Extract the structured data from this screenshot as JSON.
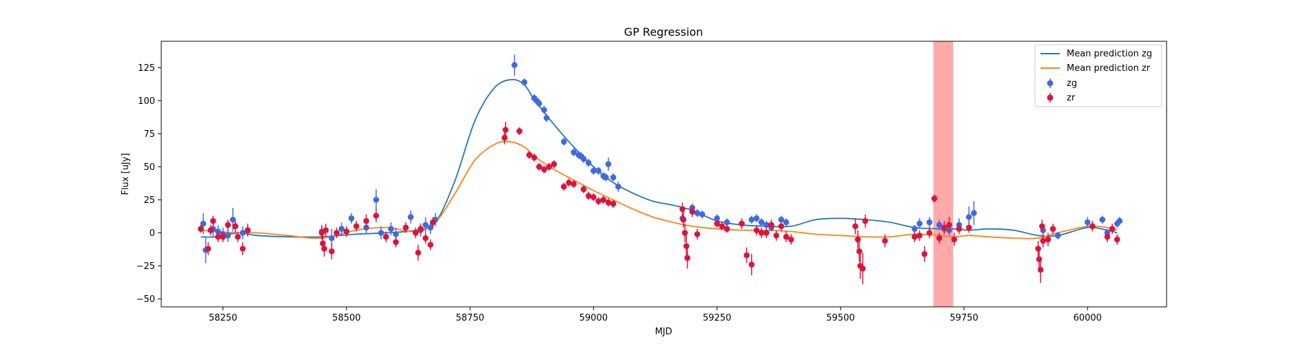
{
  "chart_data": {
    "type": "scatter",
    "title": "GP Regression",
    "xlabel": "MJD",
    "ylabel": "Flux [uJy]",
    "xlim": [
      58125,
      60160
    ],
    "ylim": [
      -56,
      145
    ],
    "xticks": [
      58250,
      58500,
      58750,
      59000,
      59250,
      59500,
      59750,
      60000
    ],
    "yticks": [
      -50,
      -25,
      0,
      25,
      50,
      75,
      100,
      125
    ],
    "grid": false,
    "legend_position": "top-right",
    "shaded_region": {
      "x0": 59688,
      "x1": 59728,
      "color": "#ff9a9a"
    },
    "series": [
      {
        "name": "Mean prediction zg",
        "kind": "line",
        "color": "#1f77b4",
        "x": [
          58205,
          58240,
          58280,
          58320,
          58380,
          58450,
          58520,
          58580,
          58640,
          58680,
          58720,
          58760,
          58800,
          58835,
          58860,
          58880,
          58920,
          58960,
          59000,
          59040,
          59080,
          59120,
          59160,
          59200,
          59250,
          59300,
          59350,
          59400,
          59450,
          59500,
          59550,
          59600,
          59650,
          59700,
          59730,
          59760,
          59800,
          59850,
          59900,
          59940,
          60000,
          60040,
          60060
        ],
        "y": [
          -3,
          -3,
          0,
          -2,
          -3,
          -3,
          -1,
          0,
          2,
          8,
          40,
          85,
          110,
          116,
          112,
          101,
          82,
          65,
          50,
          38,
          30,
          24,
          21,
          17,
          9,
          6,
          5,
          5,
          10,
          11,
          10,
          8,
          4,
          3,
          3,
          2,
          3,
          2,
          -2,
          -2,
          4,
          2,
          0
        ]
      },
      {
        "name": "Mean prediction zr",
        "kind": "line",
        "color": "#ff7f0e",
        "x": [
          58205,
          58240,
          58280,
          58320,
          58380,
          58450,
          58520,
          58580,
          58640,
          58680,
          58720,
          58760,
          58800,
          58830,
          58860,
          58880,
          58920,
          58960,
          59000,
          59040,
          59080,
          59120,
          59160,
          59200,
          59250,
          59300,
          59350,
          59400,
          59450,
          59500,
          59550,
          59600,
          59650,
          59700,
          59730,
          59760,
          59800,
          59850,
          59900,
          59940,
          60000,
          60040,
          60060
        ],
        "y": [
          2,
          1,
          0,
          0,
          -2,
          -4,
          2,
          4,
          1,
          8,
          30,
          55,
          67,
          69,
          65,
          58,
          48,
          40,
          32,
          25,
          18,
          12,
          8,
          5,
          3,
          2,
          2,
          1,
          -1,
          -2,
          -3,
          -3,
          -1,
          -2,
          -3,
          -2,
          -3,
          -4,
          -4,
          0,
          5,
          4,
          2
        ]
      },
      {
        "name": "zg",
        "kind": "errorbar",
        "color": "#4169e1",
        "x": [
          58210,
          58215,
          58230,
          58240,
          58250,
          58260,
          58270,
          58275,
          58290,
          58300,
          58450,
          58470,
          58490,
          58510,
          58540,
          58560,
          58570,
          58590,
          58600,
          58630,
          58650,
          58660,
          58670,
          58680,
          58840,
          58860,
          58880,
          58885,
          58890,
          58900,
          58905,
          58940,
          58960,
          58970,
          58975,
          58980,
          58990,
          59000,
          59010,
          59020,
          59025,
          59030,
          59040,
          59050,
          59180,
          59200,
          59210,
          59220,
          59250,
          59270,
          59300,
          59320,
          59330,
          59340,
          59350,
          59360,
          59380,
          59390,
          59650,
          59660,
          59680,
          59700,
          59710,
          59720,
          59740,
          59760,
          59770,
          59910,
          59940,
          60000,
          60030,
          60040,
          60060,
          60065
        ],
        "y": [
          7,
          -13,
          3,
          1,
          -1,
          -2,
          10,
          5,
          0,
          2,
          1,
          -4,
          3,
          11,
          4,
          25,
          0,
          3,
          -1,
          12,
          2,
          6,
          4,
          10,
          127,
          114,
          102,
          100,
          98,
          93,
          87,
          69,
          61,
          59,
          58,
          56,
          53,
          47,
          47,
          43,
          42,
          52,
          42,
          35,
          11,
          19,
          15,
          14,
          11,
          8,
          7,
          10,
          11,
          8,
          6,
          4,
          10,
          8,
          3,
          7,
          8,
          6,
          3,
          2,
          6,
          12,
          15,
          2,
          -2,
          8,
          10,
          0,
          7,
          9
        ],
        "err": [
          8,
          10,
          6,
          5,
          5,
          5,
          9,
          6,
          5,
          5,
          5,
          7,
          5,
          4,
          5,
          8,
          5,
          5,
          5,
          5,
          5,
          6,
          5,
          5,
          8,
          3,
          3,
          3,
          3,
          3,
          3,
          3,
          3,
          3,
          3,
          3,
          3,
          3,
          3,
          3,
          3,
          5,
          3,
          4,
          3,
          3,
          3,
          3,
          3,
          3,
          3,
          3,
          3,
          3,
          3,
          3,
          3,
          3,
          3,
          4,
          4,
          4,
          4,
          4,
          5,
          8,
          9,
          4,
          3,
          4,
          3,
          3,
          3,
          3
        ]
      },
      {
        "name": "zr",
        "kind": "errorbar",
        "color": "#dc143c",
        "x": [
          58205,
          58220,
          58225,
          58230,
          58240,
          58250,
          58260,
          58275,
          58280,
          58290,
          58300,
          58450,
          58452,
          58455,
          58458,
          58470,
          58480,
          58500,
          58520,
          58540,
          58560,
          58580,
          58600,
          58620,
          58640,
          58645,
          58650,
          58660,
          58670,
          58675,
          58820,
          58822,
          58850,
          58870,
          58880,
          58890,
          58900,
          58910,
          58920,
          58940,
          58950,
          58960,
          58980,
          58990,
          59000,
          59010,
          59020,
          59030,
          59040,
          59180,
          59182,
          59185,
          59188,
          59190,
          59200,
          59210,
          59250,
          59260,
          59270,
          59300,
          59310,
          59320,
          59330,
          59340,
          59350,
          59360,
          59370,
          59380,
          59390,
          59400,
          59530,
          59535,
          59538,
          59540,
          59545,
          59550,
          59590,
          59650,
          59660,
          59670,
          59680,
          59690,
          59700,
          59710,
          59720,
          59730,
          59740,
          59760,
          59900,
          59902,
          59905,
          59908,
          59910,
          59920,
          59930,
          60010,
          60040,
          60050,
          60060
        ],
        "y": [
          3,
          -12,
          2,
          9,
          -3,
          -3,
          6,
          5,
          -3,
          -12,
          2,
          0,
          -8,
          -12,
          2,
          -14,
          0,
          1,
          5,
          9,
          13,
          -3,
          -7,
          4,
          0,
          -15,
          3,
          -4,
          -9,
          8,
          72,
          78,
          77,
          59,
          57,
          50,
          48,
          50,
          52,
          35,
          38,
          37,
          33,
          28,
          27,
          24,
          25,
          23,
          22,
          18,
          10,
          0,
          -10,
          -19,
          16,
          -1,
          7,
          5,
          3,
          7,
          -17,
          -24,
          2,
          0,
          0,
          6,
          -2,
          5,
          -3,
          -5,
          5,
          -5,
          -14,
          -25,
          -27,
          9,
          -6,
          -3,
          -2,
          -16,
          0,
          26,
          -4,
          4,
          6,
          -5,
          3,
          4,
          -12,
          -20,
          -28,
          5,
          -6,
          -5,
          3,
          5,
          -3,
          3,
          -5
        ],
        "err": [
          3,
          5,
          4,
          4,
          4,
          4,
          4,
          4,
          4,
          5,
          4,
          5,
          6,
          6,
          5,
          6,
          4,
          4,
          4,
          5,
          5,
          4,
          4,
          4,
          4,
          6,
          4,
          4,
          4,
          4,
          5,
          6,
          3,
          3,
          3,
          3,
          3,
          3,
          3,
          3,
          3,
          3,
          3,
          3,
          3,
          3,
          3,
          3,
          3,
          5,
          6,
          7,
          8,
          8,
          4,
          4,
          3,
          3,
          3,
          4,
          6,
          8,
          4,
          4,
          4,
          4,
          4,
          4,
          4,
          4,
          6,
          7,
          8,
          10,
          12,
          5,
          5,
          4,
          4,
          6,
          4,
          3,
          4,
          5,
          6,
          5,
          4,
          4,
          6,
          8,
          10,
          5,
          5,
          5,
          4,
          4,
          4,
          4,
          4
        ]
      }
    ]
  }
}
